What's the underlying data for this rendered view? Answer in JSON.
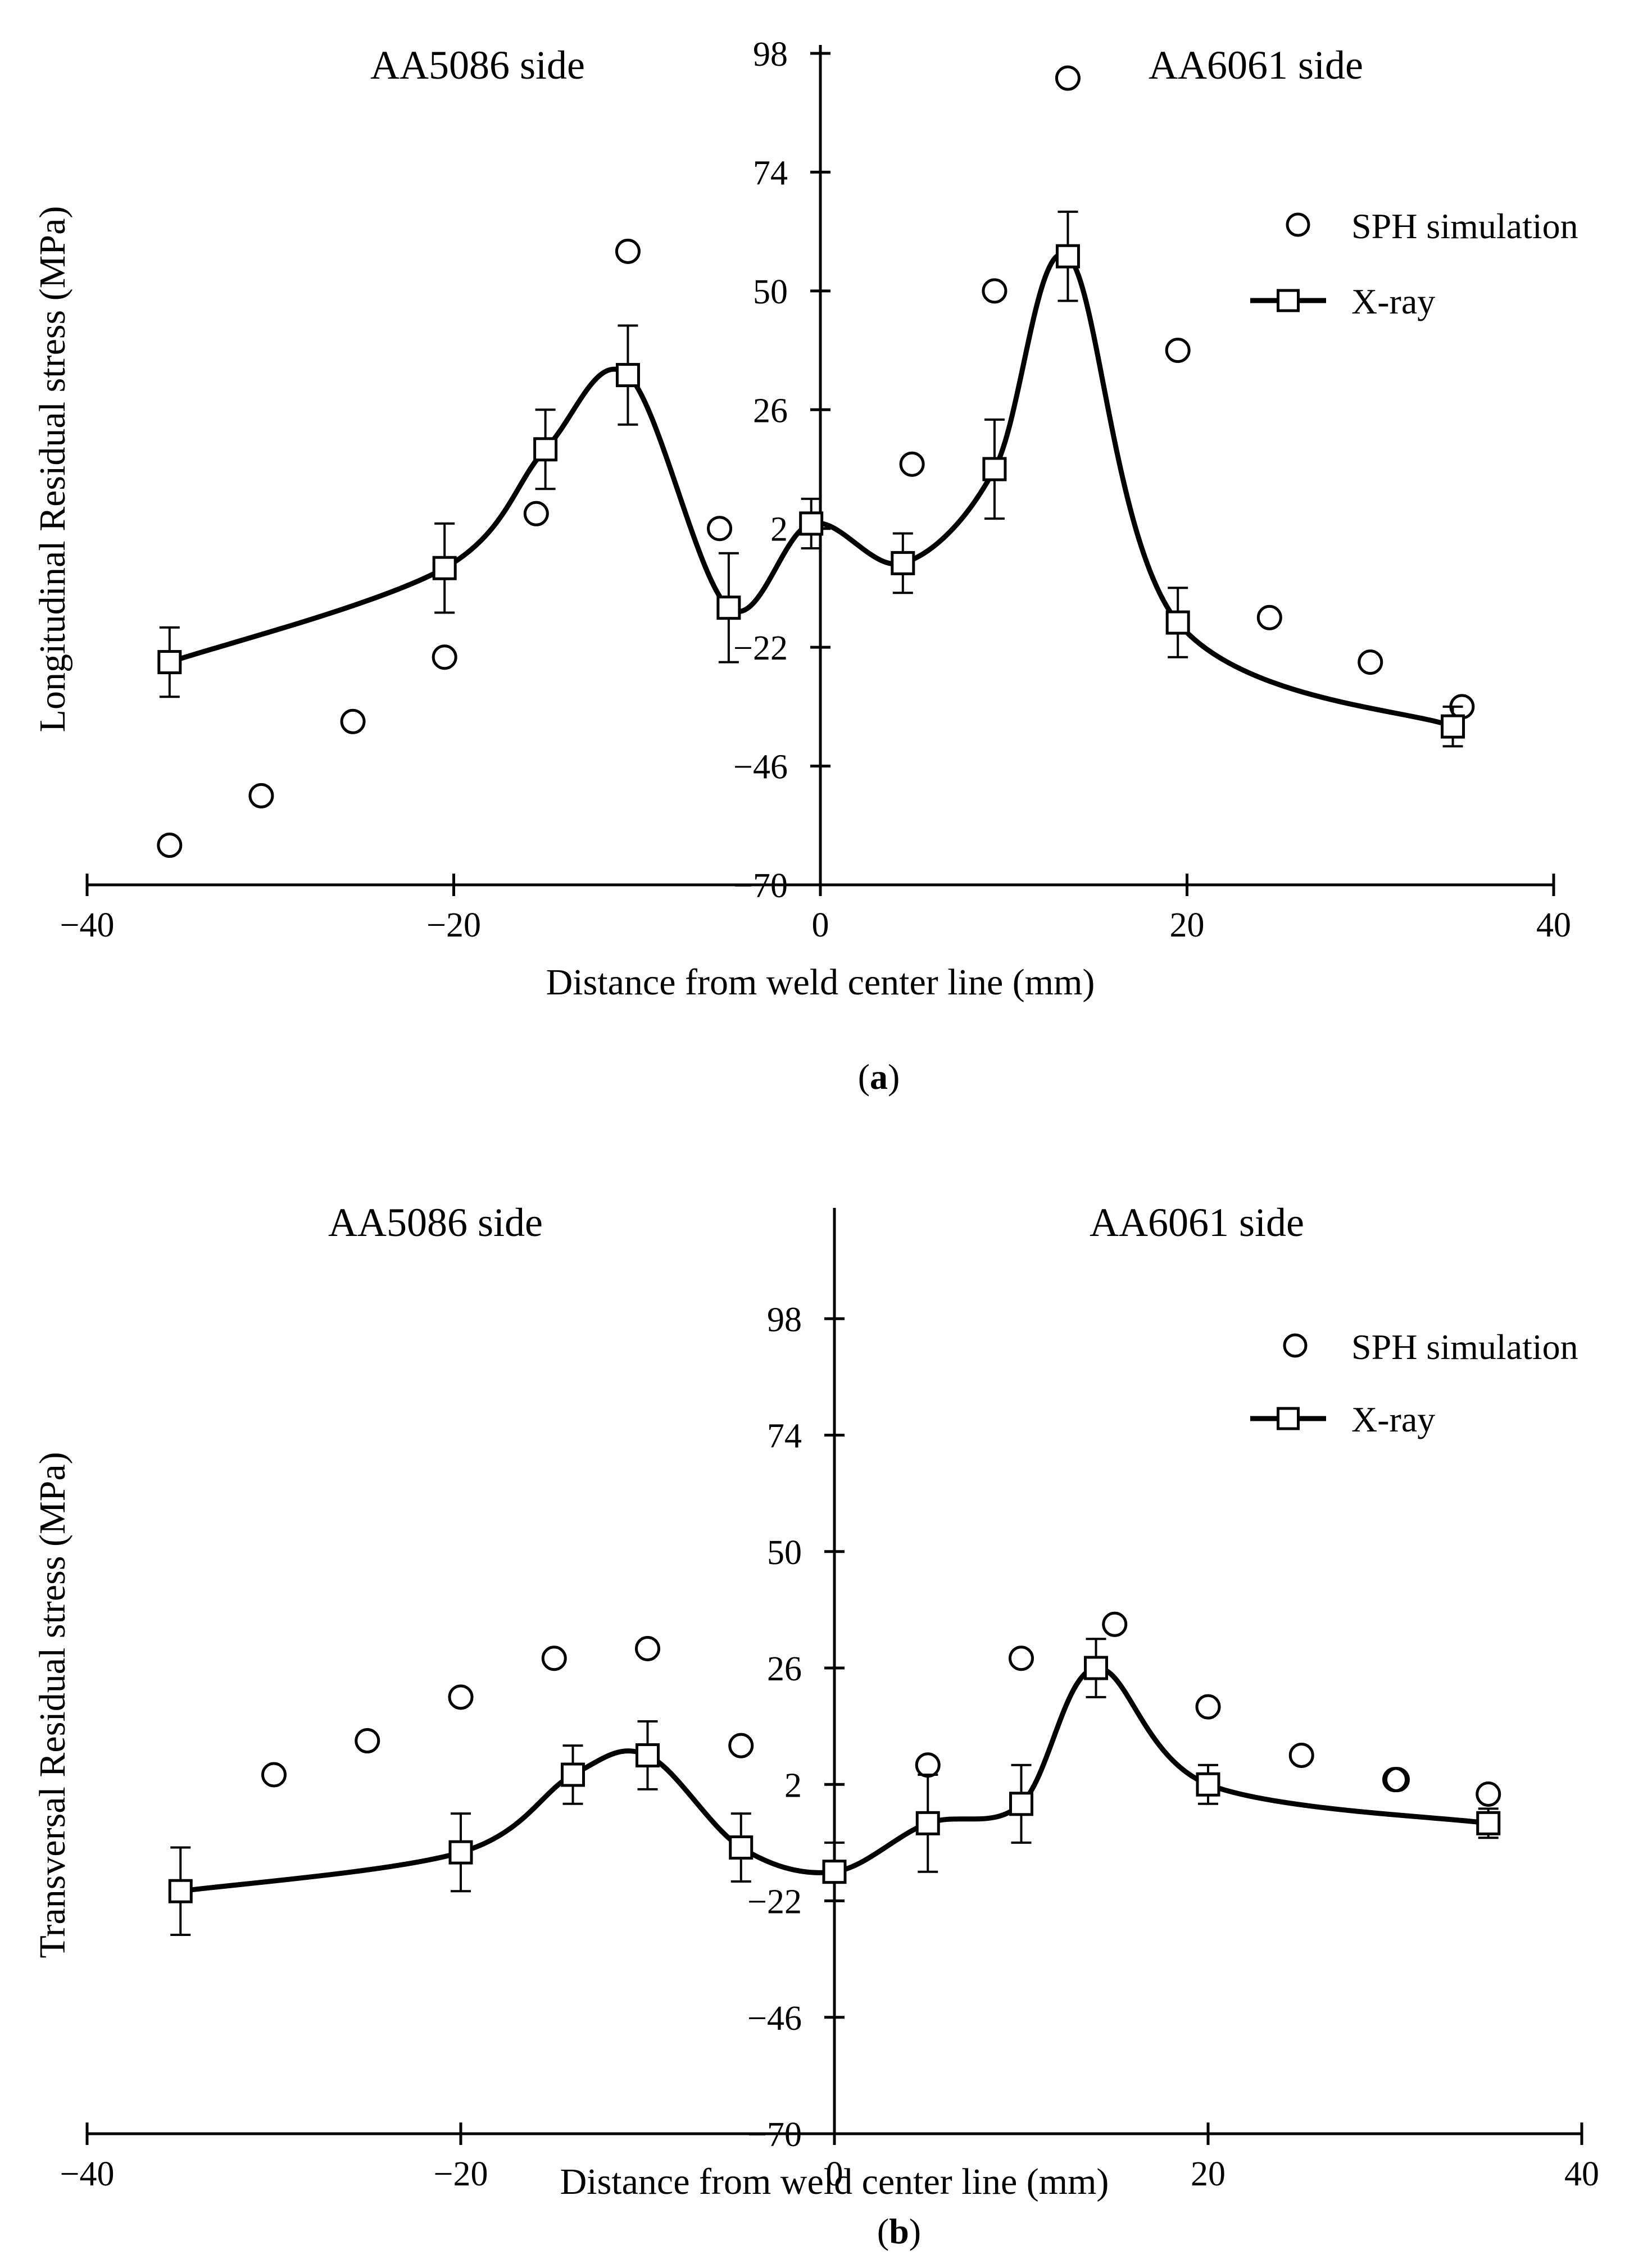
{
  "chart_data": [
    {
      "type": "scatter",
      "panel_label": "a",
      "xlabel": "Distance from weld center line (mm)",
      "ylabel": "Longitudinal Residual stress (MPa)",
      "xlim": [
        -40,
        40
      ],
      "ylim": [
        -70,
        98
      ],
      "x_ticks": [
        -40,
        -20,
        0,
        20,
        40
      ],
      "y_ticks": [
        98,
        74,
        50,
        26,
        2,
        -22,
        -46,
        -70
      ],
      "grid": false,
      "legend_position": "top-right",
      "annotations": [
        "AA5086 side",
        "AA6061 side"
      ],
      "series": [
        {
          "name": "SPH simulation",
          "marker": "circle",
          "x": [
            -35.5,
            -30.5,
            -25.5,
            -20.5,
            -15.5,
            -10.5,
            -5.5,
            5,
            9.5,
            13.5,
            19.5,
            24.5,
            30,
            35
          ],
          "y": [
            -62,
            -52,
            -37,
            -24,
            5,
            58,
            2,
            15,
            50,
            93,
            38,
            -16,
            -25,
            -34
          ]
        },
        {
          "name": "X-ray",
          "marker": "square",
          "x": [
            -35.5,
            -20.5,
            -15,
            -10.5,
            -5,
            -0.5,
            4.5,
            9.5,
            13.5,
            19.5,
            34.5
          ],
          "y": [
            -25,
            -6,
            18,
            33,
            -14,
            3,
            -5,
            14,
            57,
            -17,
            -38
          ],
          "error": [
            7,
            9,
            8,
            10,
            11,
            5,
            6,
            10,
            9,
            7,
            4
          ]
        }
      ]
    },
    {
      "type": "scatter",
      "panel_label": "b",
      "xlabel": "Distance from weld center line (mm)",
      "ylabel": "Transversal Residual stress (MPa)",
      "xlim": [
        -40,
        40
      ],
      "ylim": [
        -70,
        122
      ],
      "x_ticks": [
        -40,
        -20,
        0,
        20,
        40
      ],
      "y_ticks": [
        98,
        74,
        50,
        26,
        2,
        -22,
        -46,
        -70
      ],
      "grid": false,
      "legend_position": "top-right",
      "annotations": [
        "AA5086 side",
        "AA6061 side"
      ],
      "series": [
        {
          "name": "SPH simulation",
          "marker": "circle",
          "x": [
            -30,
            -25,
            -20,
            -15,
            -10,
            -5,
            5,
            10,
            15,
            20,
            25,
            30,
            35
          ],
          "y": [
            4,
            11,
            20,
            28,
            30,
            10,
            6,
            28,
            35,
            18,
            8,
            3,
            0
          ],
          "duplicate_marker_indices": [
            11
          ]
        },
        {
          "name": "X-ray",
          "marker": "square",
          "x": [
            -35,
            -20,
            -14,
            -10,
            -5,
            0,
            5,
            10,
            14,
            20,
            35
          ],
          "y": [
            -20,
            -12,
            4,
            8,
            -11,
            -16,
            -6,
            -2,
            26,
            2,
            -6
          ],
          "error": [
            9,
            8,
            6,
            7,
            7,
            6,
            10,
            8,
            6,
            4,
            3
          ]
        }
      ]
    }
  ]
}
